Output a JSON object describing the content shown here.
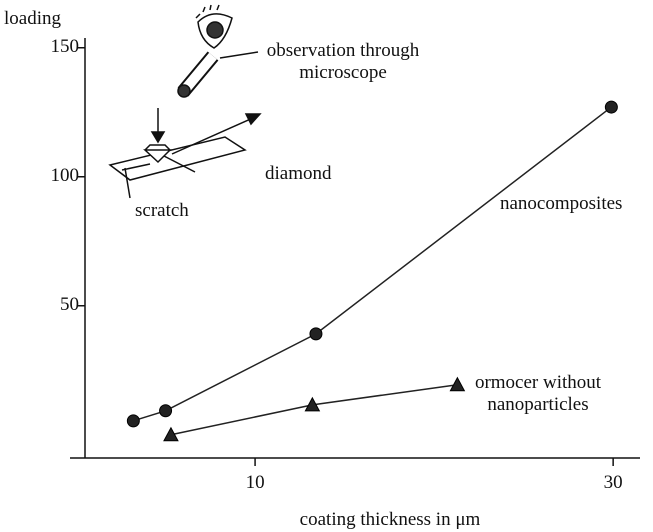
{
  "chart_data": {
    "type": "line",
    "x_label": "coating thickness in μm",
    "y_label": "loading",
    "xlim": [
      0.5,
      31.5
    ],
    "xticks": [
      10,
      30
    ],
    "ylim": [
      -9,
      153
    ],
    "yticks": [
      50,
      100,
      150
    ],
    "series": [
      {
        "name": "nanocomposites",
        "color": "#222222",
        "marker": "circle",
        "x": [
          3.2,
          5.0,
          13.4,
          29.9
        ],
        "values": [
          5.4,
          9.3,
          39.1,
          127
        ]
      },
      {
        "name": "ormocer without nanoparticles",
        "color": "#222222",
        "marker": "triangle",
        "x": [
          5.3,
          13.2,
          21.3
        ],
        "values": [
          0,
          11.6,
          19.4
        ]
      }
    ],
    "annotations": [
      "observation through microscope",
      "diamond",
      "scratch"
    ]
  }
}
